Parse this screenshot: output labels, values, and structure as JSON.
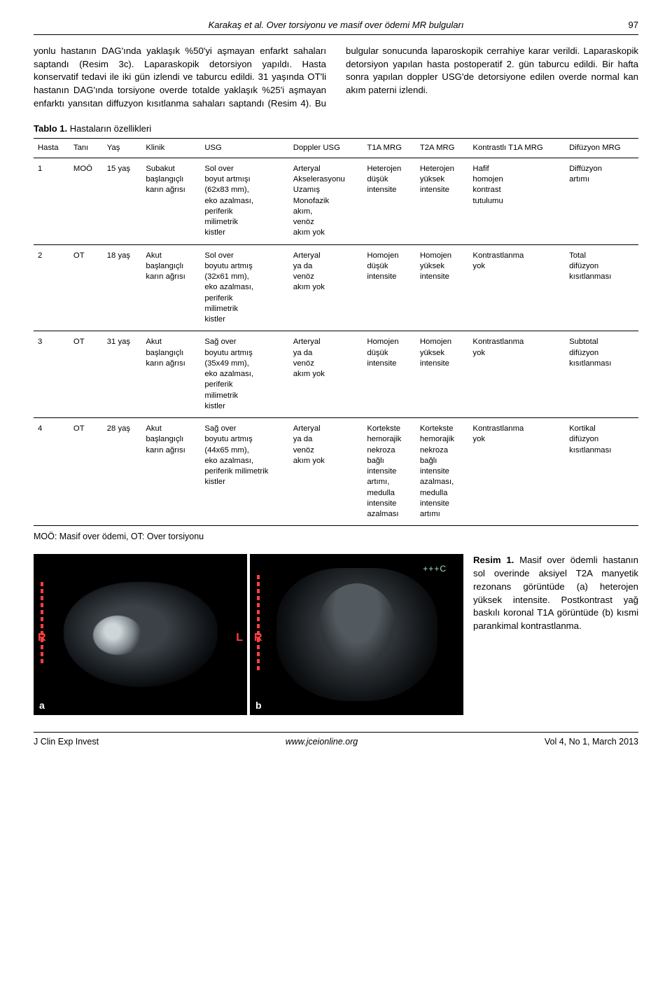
{
  "header": {
    "running": "Karakaş et al. Over torsiyonu ve masif over ödemi MR bulguları",
    "page": "97"
  },
  "body_text": "yonlu hastanın DAG'ında yaklaşık %50'yi aşmayan enfarkt sahaları saptandı (Resim 3c). Laparaskopik detorsiyon yapıldı. Hasta konservatif tedavi ile iki gün izlendi ve taburcu edildi. 31 yaşında OT'li hastanın DAG'ında torsiyone overde totalde yaklaşık %25'i aşmayan enfarktı yansıtan diffuzyon kısıtlanma sahaları saptandı (Resim 4). Bu bulgular sonucunda laparoskopik cerrahiye karar verildi. Laparaskopik detorsiyon yapılan hasta postoperatif 2. gün taburcu edildi. Bir hafta sonra yapılan doppler USG'de detorsiyone edilen overde normal kan akım paterni izlendi.",
  "table": {
    "caption_bold": "Tablo 1.",
    "caption_rest": " Hastaların özellikleri",
    "columns": [
      "Hasta",
      "Tanı",
      "Yaş",
      "Klinik",
      "USG",
      "Doppler USG",
      "T1A MRG",
      "T2A MRG",
      "Kontrastlı\nT1A MRG",
      "Difüzyon\nMRG"
    ],
    "rows": [
      [
        "1",
        "MOÖ",
        "15 yaş",
        "Subakut\nbaşlangıçlı\nkarın ağrısı",
        "Sol over\nboyut artmışı\n(62x83 mm),\neko azalması,\nperiferik\nmilimetrik\nkistler",
        "Arteryal\nAkselerasyonu\nUzamış\nMonofazik\nakım,\nvenöz\nakım yok",
        "Heterojen\ndüşük\nintensite",
        "Heterojen\nyüksek\nintensite",
        "Hafif\nhomojen\nkontrast\ntutulumu",
        "Diffüzyon\nartımı"
      ],
      [
        "2",
        "OT",
        "18 yaş",
        "Akut\nbaşlangıçlı\nkarın ağrısı",
        "Sol over\nboyutu artmış\n(32x61 mm),\neko azalması,\nperiferik\nmilimetrik\nkistler",
        "Arteryal\nya da\nvenöz\nakım yok",
        "Homojen\ndüşük\nintensite",
        "Homojen\nyüksek\nintensite",
        "Kontrastlanma\nyok",
        "Total\ndifüzyon\nkısıtlanması"
      ],
      [
        "3",
        "OT",
        "31 yaş",
        "Akut\nbaşlangıçlı\nkarın ağrısı",
        "Sağ over\nboyutu artmış\n(35x49 mm),\neko azalması,\nperiferik\nmilimetrik\nkistler",
        "Arteryal\nya da\nvenöz\nakım yok",
        "Homojen\ndüşük\nintensite",
        "Homojen\nyüksek\nintensite",
        "Kontrastlanma\nyok",
        "Subtotal\ndifüzyon\nkısıtlanması"
      ],
      [
        "4",
        "OT",
        "28 yaş",
        "Akut\nbaşlangıçlı\nkarın ağrısı",
        "Sağ over\nboyutu artmış\n(44x65 mm),\neko azalması,\nperiferik milimetrik\nkistler",
        "Arteryal\nya da\nvenöz\nakım yok",
        "Kortekste\nhemorajik\nnekroza\nbağlı\nintensite\nartımı,\nmedulla\nintensite\nazalması",
        "Kortekste\nhemorajik\nnekroza\nbağlı\nintensite\nazalması,\nmedulla\nintensite\nartımı",
        "Kontrastlanma\nyok",
        "Kortikal\ndifüzyon\nkısıtlanması"
      ]
    ],
    "footnote": "MOÖ: Masif over ödemi, OT: Over torsiyonu"
  },
  "figure": {
    "panel_a_letters": {
      "R": "R",
      "L": "L",
      "corner": "a"
    },
    "panel_b_letters": {
      "R": "R",
      "corner": "b",
      "marker": "+++C"
    },
    "caption_bold": "Resim 1.",
    "caption_rest": " Masif over ödemli hastanın sol overinde aksiyel T2A manyetik rezonans görüntüde (a) heterojen yüksek intensite. Postkontrast yağ baskılı koronal T1A görüntüde (b) kısmi parankimal kontrastlanma."
  },
  "footer": {
    "left": "J Clin Exp Invest",
    "mid": "www.jceionline.org",
    "right": "Vol 4, No 1, March 2013"
  }
}
